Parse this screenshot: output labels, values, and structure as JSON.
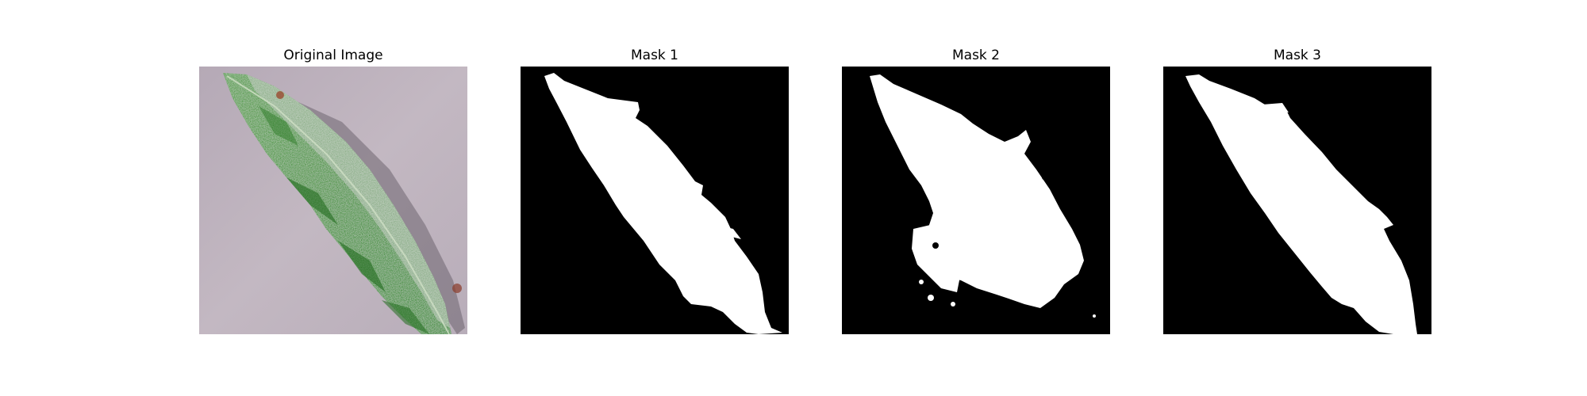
{
  "figure": {
    "panels": [
      {
        "title": "Original Image"
      },
      {
        "title": "Mask 1"
      },
      {
        "title": "Mask 2"
      },
      {
        "title": "Mask 3"
      }
    ]
  },
  "colors": {
    "background": "#ffffff",
    "mask_background": "#000000",
    "mask_foreground": "#ffffff",
    "leaf_green": "#3f9a35",
    "leaf_pale": "#8fb08c",
    "surface": "#b9aeb9"
  }
}
